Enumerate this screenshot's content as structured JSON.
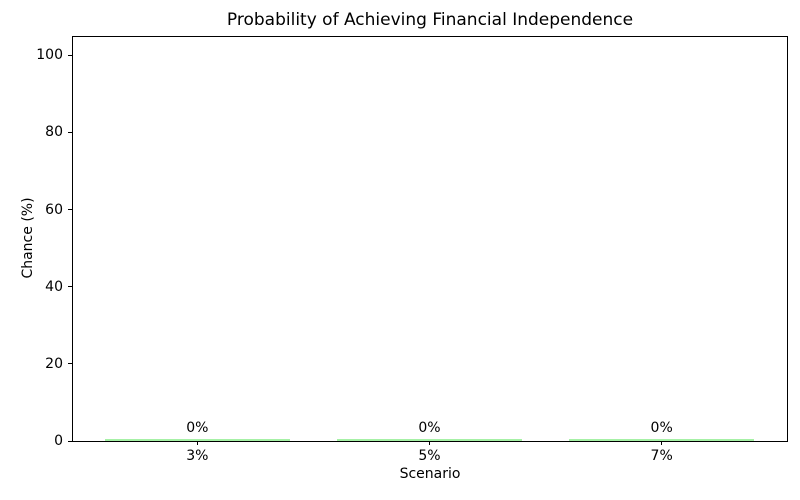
{
  "chart_data": {
    "type": "bar",
    "title": "Probability of Achieving Financial Independence",
    "xlabel": "Scenario",
    "ylabel": "Chance (%)",
    "categories": [
      "3%",
      "5%",
      "7%"
    ],
    "values": [
      0,
      0,
      0
    ],
    "bar_value_labels": [
      "0%",
      "0%",
      "0%"
    ],
    "ylim": [
      0,
      105
    ],
    "yticks": [
      0,
      20,
      40,
      60,
      80,
      100
    ],
    "bar_width_fraction": 0.8,
    "bar_color": "#90ee90",
    "axis_color": "#000000",
    "text_color": "#000000",
    "background_color": "#ffffff",
    "grid": false,
    "legend_position": "none"
  }
}
